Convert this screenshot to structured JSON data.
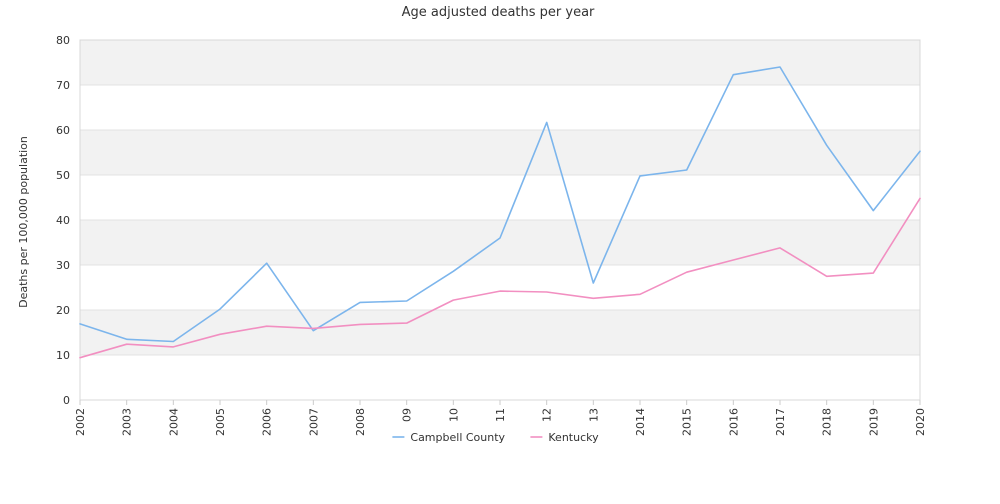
{
  "chart_data": {
    "type": "line",
    "title": "Age adjusted deaths per year",
    "xlabel": "",
    "ylabel": "Deaths per 100,000 population",
    "ylim": [
      0,
      80
    ],
    "yticks": [
      "0",
      "10",
      "20",
      "30",
      "40",
      "50",
      "60",
      "70",
      "80"
    ],
    "categories": [
      "2002",
      "2003",
      "2004",
      "2005",
      "2006",
      "2007",
      "2008",
      "09",
      "10",
      "11",
      "12",
      "13",
      "2014",
      "2015",
      "2016",
      "2017",
      "2018",
      "2019",
      "2020"
    ],
    "series": [
      {
        "name": "Campbell County",
        "color": "#7cb5ec",
        "values": [
          16.9,
          13.5,
          13.0,
          20.2,
          30.4,
          15.4,
          21.7,
          22.0,
          28.6,
          36.0,
          61.7,
          26.0,
          49.8,
          51.1,
          72.3,
          74.0,
          56.6,
          42.1,
          55.3
        ]
      },
      {
        "name": "Kentucky",
        "color": "#f28fc1",
        "values": [
          9.4,
          12.4,
          11.8,
          14.6,
          16.4,
          15.9,
          16.8,
          17.1,
          22.2,
          24.2,
          24.0,
          22.6,
          23.5,
          28.4,
          31.1,
          33.8,
          27.5,
          28.2,
          44.8
        ]
      }
    ],
    "grid": true,
    "alternating_bands": true,
    "legend_position": "bottom-center"
  }
}
